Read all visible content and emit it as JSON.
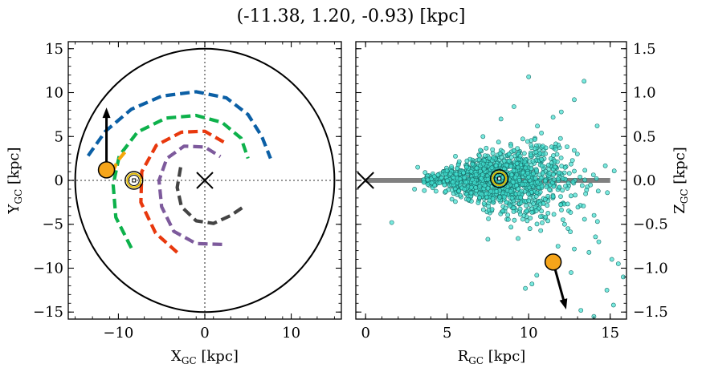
{
  "figure": {
    "title": "(-11.38, 1.20, -0.93) [kpc]"
  },
  "chart_data": [
    {
      "type": "line",
      "name": "galactic-plane-view",
      "xlabel": "X_GC [kpc]",
      "ylabel": "Y_GC [kpc]",
      "xlabel_main": "X",
      "xlabel_sub": "GC",
      "xlabel_unit": " [kpc]",
      "ylabel_main": "Y",
      "ylabel_sub": "GC",
      "ylabel_unit": " [kpc]",
      "xlim": [
        -15.8,
        15.8
      ],
      "ylim": [
        -15.8,
        15.8
      ],
      "xticks": [
        -10,
        0,
        10
      ],
      "yticks": [
        -15,
        -10,
        -5,
        0,
        5,
        10,
        15
      ],
      "xtick_labels": [
        "−10",
        "0",
        "10"
      ],
      "ytick_labels": [
        "−15",
        "−10",
        "−5",
        "0",
        "5",
        "10",
        "15"
      ],
      "grid": false,
      "boundary_circle_radius": 15,
      "spiral_arms": [
        {
          "color": "#0b5fa5",
          "points": [
            [
              -13.5,
              2.8
            ],
            [
              -11.5,
              5.6
            ],
            [
              -8.5,
              8.1
            ],
            [
              -5,
              9.6
            ],
            [
              -1,
              10.1
            ],
            [
              2.5,
              9.4
            ],
            [
              5,
              7.5
            ],
            [
              6.6,
              5
            ],
            [
              7.6,
              2.5
            ]
          ]
        },
        {
          "color": "#0db14b",
          "points": [
            [
              -8.5,
              -7.7
            ],
            [
              -10.3,
              -4.2
            ],
            [
              -10.6,
              -0.5
            ],
            [
              -9.9,
              2.8
            ],
            [
              -7.8,
              5.5
            ],
            [
              -4.5,
              7.1
            ],
            [
              -1,
              7.4
            ],
            [
              2,
              6.6
            ],
            [
              4.2,
              4.8
            ],
            [
              5,
              2.5
            ]
          ]
        },
        {
          "color": "#f5a60a",
          "points": [
            [
              -10.7,
              0.9
            ],
            [
              -10.1,
              2.2
            ],
            [
              -9.1,
              3.4
            ]
          ]
        },
        {
          "color": "#e8380d",
          "points": [
            [
              -3.2,
              -8.2
            ],
            [
              -5.7,
              -6
            ],
            [
              -7.4,
              -2.5
            ],
            [
              -7.3,
              1
            ],
            [
              -5.6,
              4
            ],
            [
              -2.7,
              5.5
            ],
            [
              0,
              5.6
            ],
            [
              2.3,
              4.3
            ]
          ]
        },
        {
          "color": "#7d5a9c",
          "points": [
            [
              2,
              -7.3
            ],
            [
              -1,
              -7.2
            ],
            [
              -3.6,
              -5.8
            ],
            [
              -5,
              -3
            ],
            [
              -5.3,
              0
            ],
            [
              -4.4,
              2.5
            ],
            [
              -2.4,
              3.9
            ],
            [
              0,
              3.8
            ],
            [
              1.8,
              2.7
            ]
          ]
        },
        {
          "color": "#444444",
          "points": [
            [
              -2.8,
              1.5
            ],
            [
              -3.2,
              -0.8
            ],
            [
              -2.7,
              -3
            ],
            [
              -1,
              -4.6
            ],
            [
              1,
              -4.9
            ],
            [
              3,
              -4
            ],
            [
              4.5,
              -3
            ]
          ]
        }
      ],
      "object_position": [
        -11.38,
        1.2
      ],
      "object_velocity_arrow_end": [
        -11.38,
        8.3
      ],
      "sun_position": [
        -8.2,
        0
      ],
      "galactic_center": [
        0,
        0
      ]
    },
    {
      "type": "scatter",
      "name": "meridional-view",
      "xlabel": "R_GC [kpc]",
      "ylabel": "Z_GC [kpc]",
      "xlabel_main": "R",
      "xlabel_sub": "GC",
      "xlabel_unit": " [kpc]",
      "ylabel_main": "Z",
      "ylabel_sub": "GC",
      "ylabel_unit": " [kpc]",
      "xlim": [
        -0.6,
        16
      ],
      "ylim": [
        -1.58,
        1.58
      ],
      "xticks": [
        0,
        5,
        10,
        15
      ],
      "yticks": [
        -1.5,
        -1.0,
        -0.5,
        0.0,
        0.5,
        1.0,
        1.5
      ],
      "xtick_labels": [
        "0",
        "5",
        "10",
        "15"
      ],
      "ytick_labels": [
        "−1.5",
        "−1.0",
        "−0.5",
        "0.0",
        "0.5",
        "1.0",
        "1.5"
      ],
      "grid": false,
      "disk_line": {
        "x": [
          0,
          15
        ],
        "y": 0,
        "color": "#808080"
      },
      "star_color": "#40e0d0",
      "star_count": 1400,
      "stars_outliers": [
        [
          10.0,
          1.18
        ],
        [
          13.4,
          1.13
        ],
        [
          12.8,
          0.92
        ],
        [
          9.1,
          0.84
        ],
        [
          14.2,
          0.62
        ],
        [
          12.0,
          0.78
        ],
        [
          11.5,
          0.72
        ],
        [
          8.3,
          0.7
        ],
        [
          7.2,
          0.5
        ],
        [
          1.6,
          -0.48
        ],
        [
          7.5,
          -0.67
        ],
        [
          10.2,
          -1.18
        ],
        [
          9.8,
          -1.23
        ],
        [
          10.5,
          -1.08
        ],
        [
          15.8,
          -1.1
        ],
        [
          15.1,
          -0.9
        ],
        [
          14.3,
          -0.7
        ],
        [
          13.7,
          -0.82
        ],
        [
          12.6,
          -1.05
        ],
        [
          15.5,
          -0.95
        ],
        [
          14.8,
          -1.25
        ],
        [
          13.2,
          -1.48
        ],
        [
          14.0,
          -1.55
        ],
        [
          15.2,
          -1.42
        ],
        [
          12.2,
          -0.5
        ],
        [
          11.8,
          -0.75
        ],
        [
          3.2,
          0.15
        ],
        [
          3.0,
          -0.1
        ]
      ],
      "object_position": [
        11.5,
        -0.93
      ],
      "object_velocity_arrow_end": [
        12.3,
        -1.47
      ],
      "sun_position": [
        8.2,
        0.02
      ],
      "galactic_center": [
        0,
        0
      ]
    }
  ]
}
